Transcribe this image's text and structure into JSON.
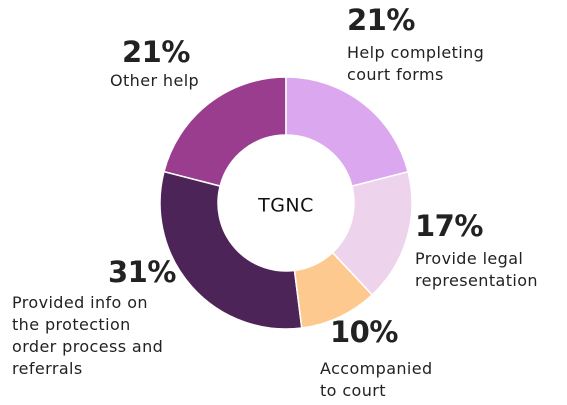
{
  "chart_data": {
    "type": "donut",
    "center_label": "TGNC",
    "categories": [
      "Help completing\ncourt forms",
      "Provide legal\nrepresentation",
      "Accompanied\nto court",
      "Provided info on\nthe protection\norder process and\nreferrals",
      "Other help"
    ],
    "values": [
      21,
      17,
      10,
      31,
      21
    ],
    "value_labels": [
      "21%",
      "17%",
      "10%",
      "31%",
      "21%"
    ],
    "colors": [
      "#dba8f0",
      "#edd3ec",
      "#fdc98e",
      "#4d2458",
      "#9a3d8f"
    ]
  }
}
